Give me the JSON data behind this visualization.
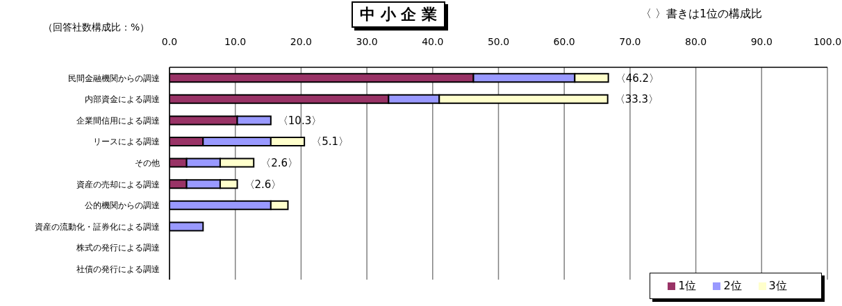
{
  "chart_data": {
    "type": "bar",
    "orientation": "horizontal",
    "stacked": true,
    "title": "中 小 企 業",
    "xlabel": "（回答社数構成比：%）",
    "categories": [
      "民間金融機関からの調達",
      "内部資金による調達",
      "企業間信用による調達",
      "リースによる調達",
      "その他",
      "資産の売却による調達",
      "公的機関からの調達",
      "資産の流動化・証券化による調達",
      "株式の発行による調達",
      "社債の発行による調達"
    ],
    "series": [
      {
        "name": "1位",
        "color": "#993366",
        "values": [
          46.2,
          33.3,
          10.3,
          5.1,
          2.6,
          2.6,
          0,
          0,
          0,
          0
        ]
      },
      {
        "name": "2位",
        "color": "#9999ff",
        "values": [
          15.4,
          7.7,
          5.1,
          10.3,
          5.1,
          5.1,
          15.4,
          5.1,
          0,
          0
        ]
      },
      {
        "name": "3位",
        "color": "#ffffcc",
        "values": [
          5.1,
          25.6,
          0,
          5.1,
          5.1,
          2.6,
          2.6,
          0,
          0,
          0
        ]
      }
    ],
    "xlim": [
      0,
      100
    ],
    "xticks": [
      {
        "value": 0,
        "label": "0.0"
      },
      {
        "value": 10,
        "label": "10.0"
      },
      {
        "value": 20,
        "label": "20.0"
      },
      {
        "value": 30,
        "label": "30.0"
      },
      {
        "value": 40,
        "label": "40.0"
      },
      {
        "value": 50,
        "label": "50.0"
      },
      {
        "value": 60,
        "label": "60.0"
      },
      {
        "value": 70,
        "label": "70.0"
      },
      {
        "value": 80,
        "label": "80.0"
      },
      {
        "value": 90,
        "label": "90.0"
      },
      {
        "value": 100,
        "label": "100.0"
      }
    ],
    "grid": "x",
    "legend": "bottom right",
    "annotations": [
      "〈 〉書きは1位の構成比",
      {
        "text": "〈46.2〉",
        "x": 66.7,
        "y": "民間金融機関からの調達"
      },
      {
        "text": "〈33.3〉",
        "x": 66.6,
        "y": "内部資金による調達"
      },
      {
        "text": "〈10.3〉",
        "x": 15.4,
        "y": "企業間信用による調達"
      },
      {
        "text": "〈5.1〉",
        "x": 20.5,
        "y": "リースによる調達"
      },
      {
        "text": "〈2.6〉",
        "x": 12.8,
        "y": "その他"
      },
      {
        "text": "〈2.6〉",
        "x": 10.3,
        "y": "資産の売却による調達"
      }
    ]
  }
}
